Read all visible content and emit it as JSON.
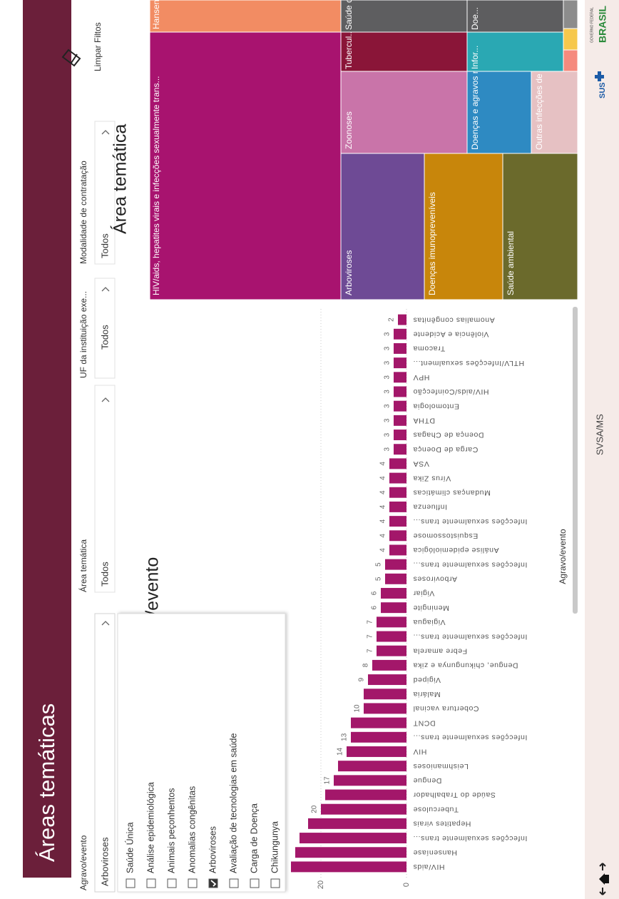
{
  "header": {
    "title": "Áreas temáticas"
  },
  "filters": [
    {
      "label": "Agravo/evento",
      "value": "Arboviroses"
    },
    {
      "label": "Área temática",
      "value": "Todos"
    },
    {
      "label": "UF da instituição exe...",
      "value": "Todos"
    },
    {
      "label": "Modalidade de contratação",
      "value": "Todos"
    }
  ],
  "clear_filters": "Limpar Filtos",
  "dropdown": {
    "items": [
      {
        "label": "Saúde Única",
        "checked": false
      },
      {
        "label": "Análise epidemiológica",
        "checked": false
      },
      {
        "label": "Animais peçonhentos",
        "checked": false
      },
      {
        "label": "Anomalias congênitas",
        "checked": false
      },
      {
        "label": "Arboviroses",
        "checked": true
      },
      {
        "label": "Avaliação de tecnologias em saúde",
        "checked": false
      },
      {
        "label": "Carga de Doença",
        "checked": false
      },
      {
        "label": "Chikungunya",
        "checked": false
      }
    ]
  },
  "chart_data": {
    "type": "bar",
    "title": "Agravo/evento",
    "x_label": "Agravo/evento",
    "categories": [
      "HIV/aids",
      "Hanseníase",
      "Infecções sexualmente trans...",
      "Hepatites virais",
      "Tuberculose",
      "Saúde do Trabalhador",
      "Dengue",
      "Leishmanioses",
      "HIV",
      "Infecções sexualmente trans...",
      "DCNT",
      "Cobertura vacinal",
      "Malária",
      "Vigiped",
      "Dengue, chikungunya e zika",
      "Febre amarela",
      "Infecções sexualmente trans...",
      "Vigiagua",
      "Meningite",
      "Vigiar",
      "Arboviroses",
      "Infecções sexualmente trans...",
      "Análise epidemiológica",
      "Esquistossomose",
      "Infecções sexualmente trans...",
      "Influenza",
      "Mudanças climáticas",
      "Vírus Zika",
      "VSA",
      "Carga de Doença",
      "Doença de Chagas",
      "DTHA",
      "Entomologia",
      "HIV/aids/Coinfecção",
      "HPV",
      "HTLV/Infecções sexualment...",
      "Tracoma",
      "Violência e Acidente",
      "Anomalias congênitas"
    ],
    "values": [
      27,
      26,
      25,
      23,
      20,
      19,
      17,
      16,
      14,
      13,
      13,
      10,
      10,
      9,
      8,
      7,
      7,
      7,
      6,
      6,
      5,
      5,
      4,
      4,
      4,
      4,
      4,
      4,
      4,
      3,
      3,
      3,
      3,
      3,
      3,
      3,
      3,
      3,
      2
    ],
    "value_labels": [
      null,
      null,
      null,
      null,
      "20",
      null,
      "17",
      null,
      "14",
      "13",
      null,
      "10",
      null,
      "9",
      "8",
      "7",
      "7",
      "7",
      "6",
      "6",
      "5",
      "5",
      "4",
      "4",
      "4",
      "4",
      "4",
      "4",
      "4",
      "3",
      "3",
      "3",
      "3",
      "3",
      "3",
      "3",
      "3",
      "3",
      "2"
    ],
    "color": "#a3176a",
    "ylim": [
      0,
      28
    ],
    "yticks": [
      0,
      20
    ],
    "grid": true
  },
  "treemap": {
    "title": "Área temática",
    "cells": [
      "HIV/aids, hepatites virais e infecções sexualmente trans...",
      "Hanseníase",
      "Arboviroses",
      "Doenças imunopreveníveis",
      "Saúde ambiental",
      "Zoonoses",
      "Tubercul...",
      "Saúde d...",
      "Doenças e agravos n...",
      "Outras infecções de ...",
      "Infor...",
      "Doe..."
    ]
  },
  "footer": {
    "source": "SVSA/MS",
    "sus": "SUS",
    "gov": "GOVERNO FEDERAL",
    "country": "BRASIL"
  }
}
